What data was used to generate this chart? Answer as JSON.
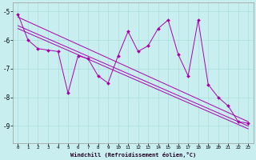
{
  "title": "",
  "xlabel": "Windchill (Refroidissement éolien,°C)",
  "bg_color": "#c8eef0",
  "line_color": "#aa00aa",
  "grid_color": "#aadddd",
  "xlim": [
    -0.5,
    23.5
  ],
  "ylim": [
    -9.6,
    -4.7
  ],
  "yticks": [
    -9,
    -8,
    -7,
    -6,
    -5
  ],
  "xticks": [
    0,
    1,
    2,
    3,
    4,
    5,
    6,
    7,
    8,
    9,
    10,
    11,
    12,
    13,
    14,
    15,
    16,
    17,
    18,
    19,
    20,
    21,
    22,
    23
  ],
  "x_main": [
    0,
    1,
    2,
    3,
    4,
    5,
    6,
    7,
    8,
    9,
    10,
    11,
    12,
    13,
    14,
    15,
    16,
    17,
    18,
    19,
    20,
    21,
    22,
    23
  ],
  "y_main": [
    -5.1,
    -6.0,
    -6.3,
    -6.35,
    -6.4,
    -7.85,
    -6.55,
    -6.65,
    -7.25,
    -7.5,
    -6.55,
    -5.7,
    -6.4,
    -6.2,
    -5.6,
    -5.3,
    -6.5,
    -7.25,
    -5.3,
    -7.55,
    -8.0,
    -8.3,
    -8.85,
    -8.9
  ],
  "trend1_x": [
    0,
    23
  ],
  "trend1_y": [
    -5.5,
    -9.0
  ],
  "trend2_x": [
    0,
    23
  ],
  "trend2_y": [
    -5.6,
    -9.1
  ],
  "trend3_x": [
    0,
    23
  ],
  "trend3_y": [
    -5.2,
    -8.85
  ]
}
